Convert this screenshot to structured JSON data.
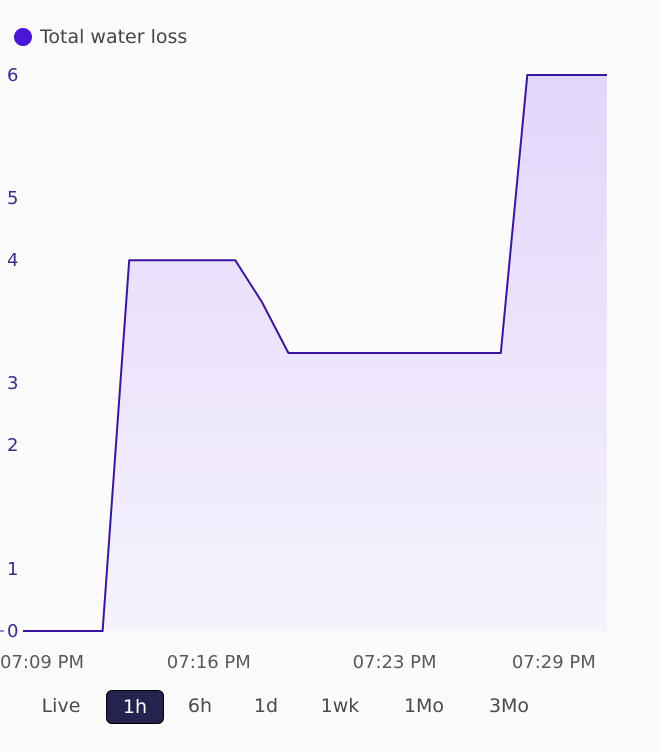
{
  "colors": {
    "series": "#4b16d6",
    "line": "#3d14a0",
    "fill_top": "#e2d6fb",
    "fill_bottom": "#f6f3fc",
    "active_range_bg": "#24234f"
  },
  "legend": {
    "label": "Total water loss"
  },
  "range_selector": {
    "options": [
      "Live",
      "1h",
      "6h",
      "1d",
      "1wk",
      "1Mo",
      "3Mo"
    ],
    "selected": "1h"
  },
  "chart_data": {
    "type": "area",
    "title": "",
    "xlabel": "",
    "ylabel": "",
    "series": [
      {
        "name": "Total water loss",
        "x": [
          "07:09",
          "07:10",
          "07:11",
          "07:12",
          "07:13",
          "07:14",
          "07:15",
          "07:16",
          "07:17",
          "07:18",
          "07:19",
          "07:20",
          "07:21",
          "07:22",
          "07:23",
          "07:24",
          "07:25",
          "07:26",
          "07:27",
          "07:28",
          "07:29",
          "07:30",
          "07:31"
        ],
        "values": [
          0,
          0,
          0,
          0,
          4,
          4,
          4,
          4,
          4,
          3.55,
          3,
          3,
          3,
          3,
          3,
          3,
          3,
          3,
          3,
          6,
          6,
          6,
          6
        ]
      }
    ],
    "y_ticks": [
      "0",
      "1",
      "2",
      "3",
      "4",
      "5",
      "6"
    ],
    "x_ticks": [
      "07:09 PM",
      "07:16 PM",
      "07:23 PM",
      "07:29 PM"
    ],
    "x_tick_positions": [
      0,
      7,
      14,
      20
    ],
    "xlim": [
      0,
      24
    ],
    "ylim": [
      0,
      6
    ],
    "grid": false
  }
}
